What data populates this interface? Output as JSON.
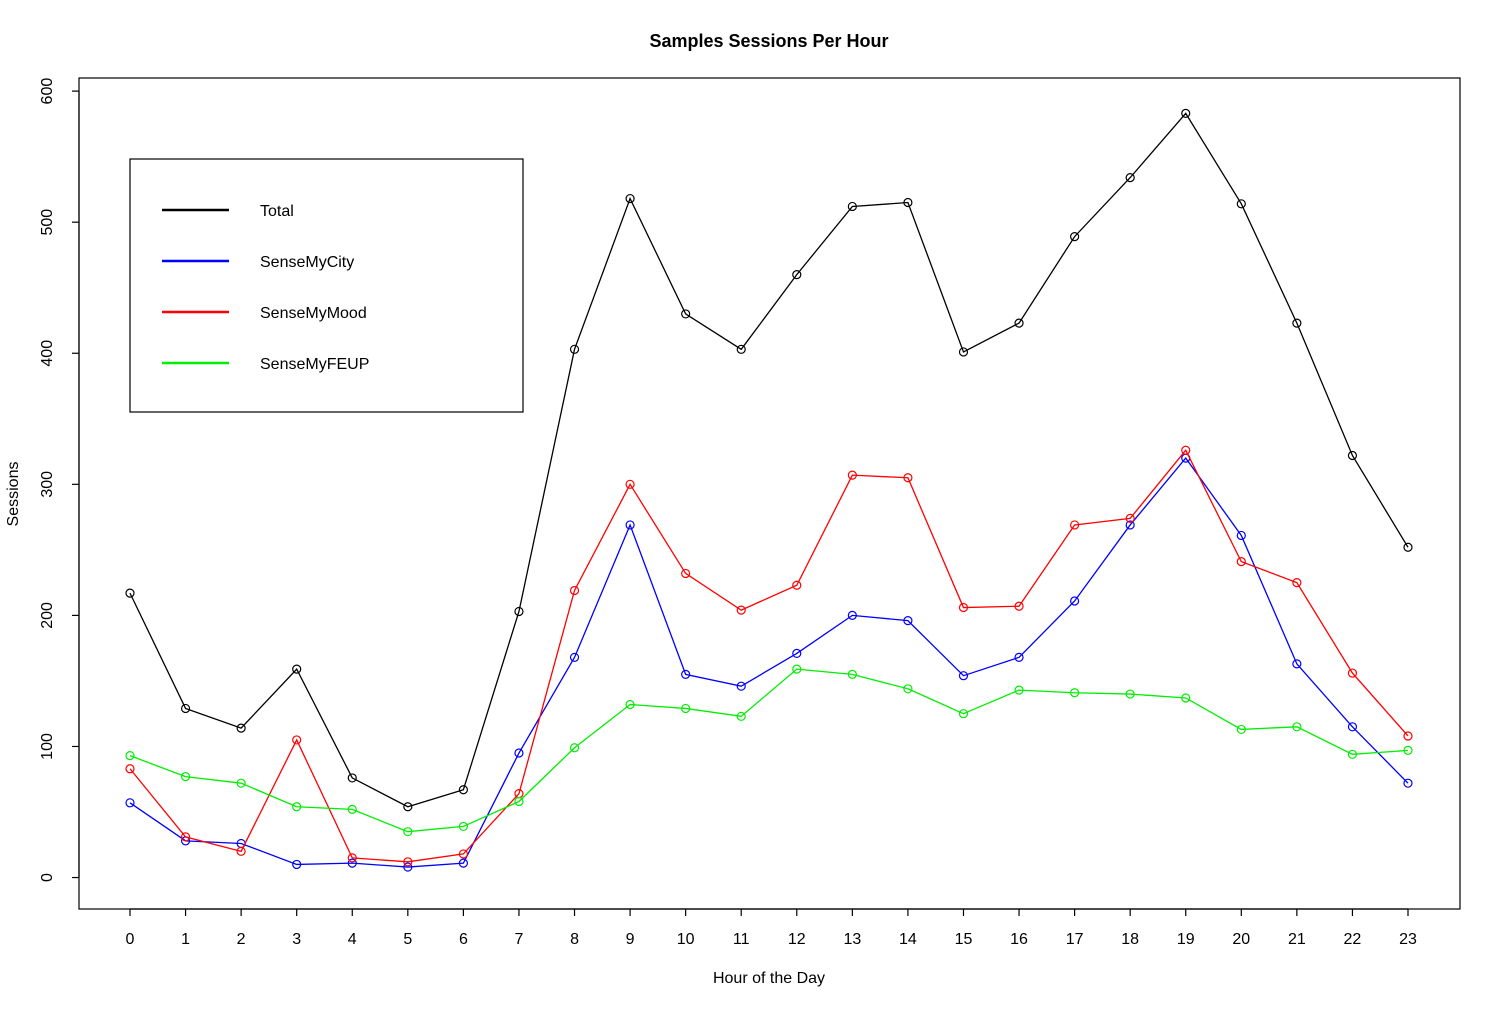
{
  "chart_data": {
    "type": "line",
    "title": "Samples Sessions Per Hour",
    "xlabel": "Hour of the Day",
    "ylabel": "Sessions",
    "categories": [
      "0",
      "1",
      "2",
      "3",
      "4",
      "5",
      "6",
      "7",
      "8",
      "9",
      "10",
      "11",
      "12",
      "13",
      "14",
      "15",
      "16",
      "17",
      "18",
      "19",
      "20",
      "21",
      "22",
      "23"
    ],
    "y_ticks": [
      "0",
      "100",
      "200",
      "300",
      "400",
      "500",
      "600"
    ],
    "ylim": [
      -24,
      610
    ],
    "grid": false,
    "legend_position": "top-left",
    "series": [
      {
        "name": "Total",
        "color": "#000000",
        "values": [
          217,
          129,
          114,
          159,
          76,
          54,
          67,
          203,
          403,
          518,
          430,
          403,
          460,
          512,
          515,
          401,
          423,
          489,
          534,
          583,
          514,
          423,
          322,
          252
        ]
      },
      {
        "name": "SenseMyCity",
        "color": "#0000ff",
        "values": [
          57,
          28,
          26,
          10,
          11,
          8,
          11,
          95,
          168,
          269,
          155,
          146,
          171,
          200,
          196,
          154,
          168,
          211,
          269,
          320,
          261,
          163,
          115,
          72
        ]
      },
      {
        "name": "SenseMyMood",
        "color": "#ff0000",
        "values": [
          83,
          31,
          20,
          105,
          15,
          12,
          18,
          64,
          219,
          300,
          232,
          204,
          223,
          307,
          305,
          206,
          207,
          269,
          274,
          326,
          241,
          225,
          156,
          108
        ]
      },
      {
        "name": "SenseMyFEUP",
        "color": "#00ee00",
        "values": [
          93,
          77,
          72,
          54,
          52,
          35,
          39,
          58,
          99,
          132,
          129,
          123,
          159,
          155,
          144,
          125,
          143,
          141,
          140,
          137,
          113,
          115,
          94,
          97
        ]
      }
    ]
  }
}
